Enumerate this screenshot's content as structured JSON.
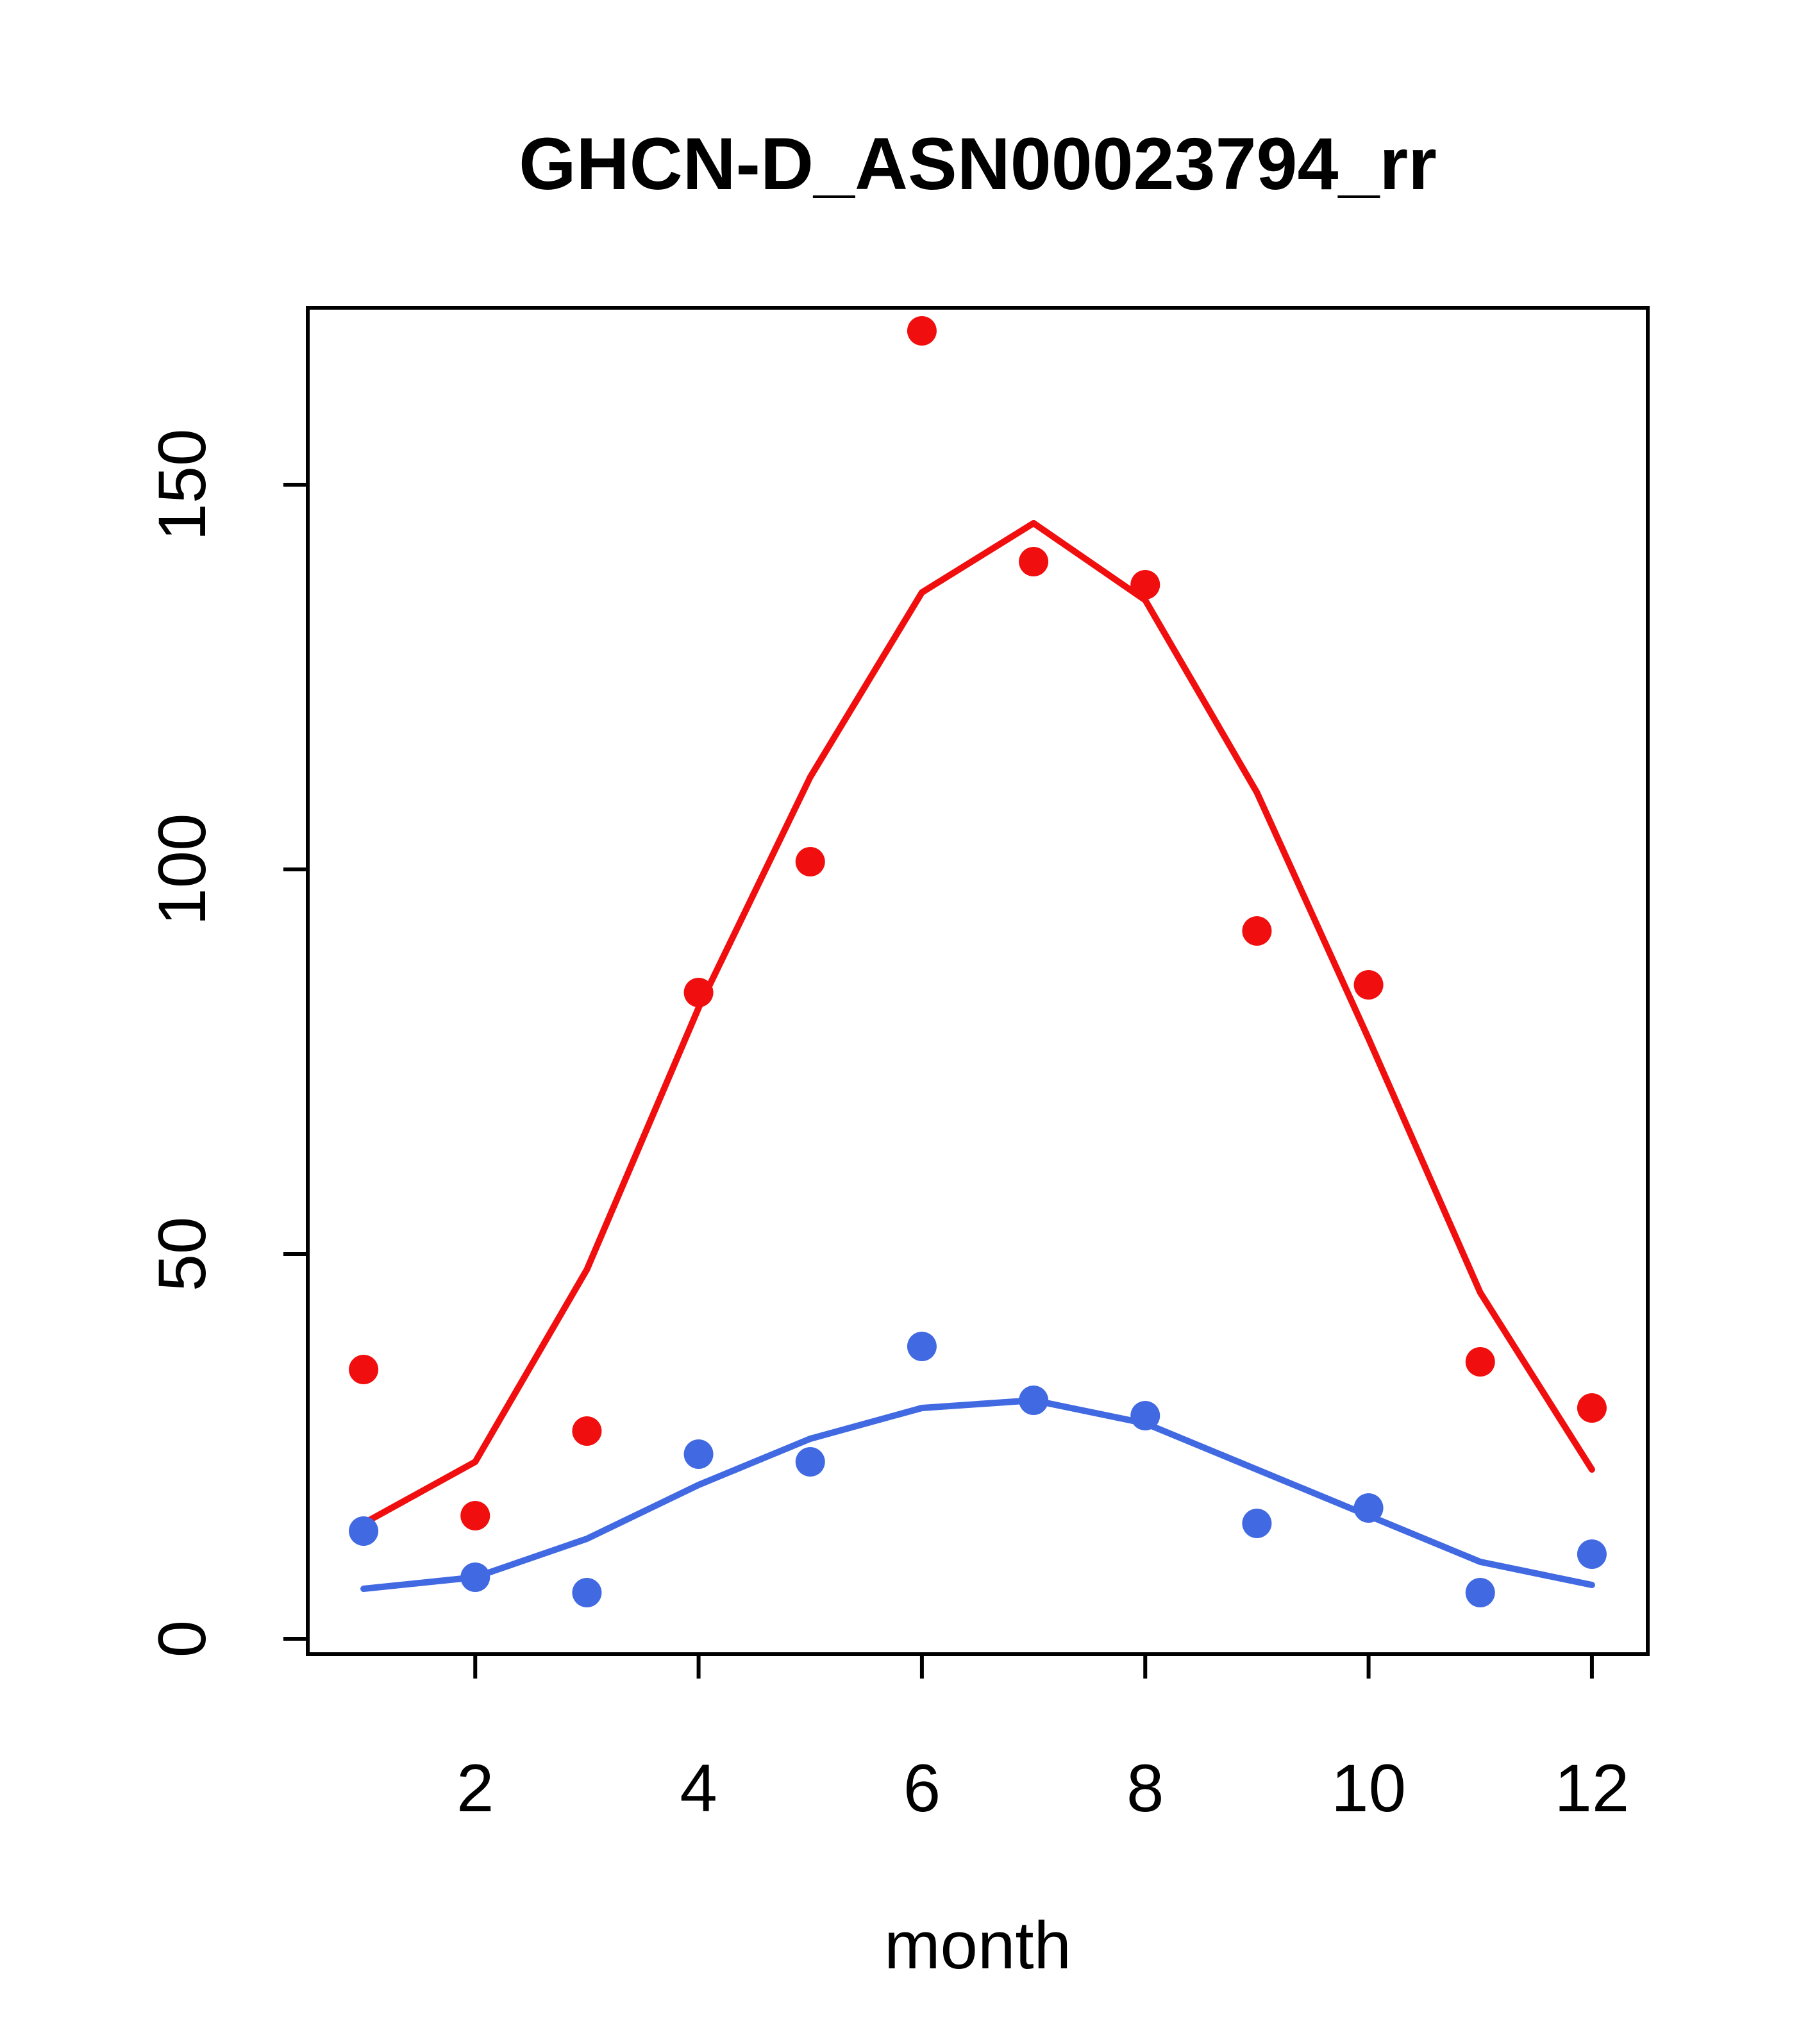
{
  "title": "GHCN-D_ASN00023794_rr",
  "chart_data": {
    "type": "scatter",
    "title": "GHCN-D_ASN00023794_rr",
    "xlabel": "month",
    "ylabel": "",
    "x": [
      1,
      2,
      3,
      4,
      5,
      6,
      7,
      8,
      9,
      10,
      11,
      12
    ],
    "xlim": [
      0.5,
      12.5
    ],
    "ylim": [
      -2,
      173
    ],
    "xticks": [
      2,
      4,
      6,
      8,
      10,
      12
    ],
    "yticks": [
      0,
      50,
      100,
      150
    ],
    "grid": false,
    "legend": null,
    "colors": {
      "red": "#f10e0e",
      "blue": "#4169e1",
      "axis": "#000000"
    },
    "series": [
      {
        "name": "red-points",
        "kind": "points",
        "color": "#f10e0e",
        "values": [
          35,
          16,
          27,
          84,
          101,
          170,
          140,
          137,
          92,
          85,
          36,
          30
        ]
      },
      {
        "name": "red-line",
        "kind": "line",
        "color": "#f10e0e",
        "values": [
          15,
          23,
          48,
          82,
          112,
          136,
          145,
          135,
          110,
          78,
          45,
          22
        ]
      },
      {
        "name": "blue-points",
        "kind": "points",
        "color": "#4169e1",
        "values": [
          14,
          8,
          6,
          24,
          23,
          38,
          31,
          29,
          15,
          17,
          6,
          11
        ]
      },
      {
        "name": "blue-line",
        "kind": "line",
        "color": "#4169e1",
        "values": [
          6.5,
          8,
          13,
          20,
          26,
          30,
          31,
          28,
          22,
          16,
          10,
          7
        ]
      }
    ]
  }
}
